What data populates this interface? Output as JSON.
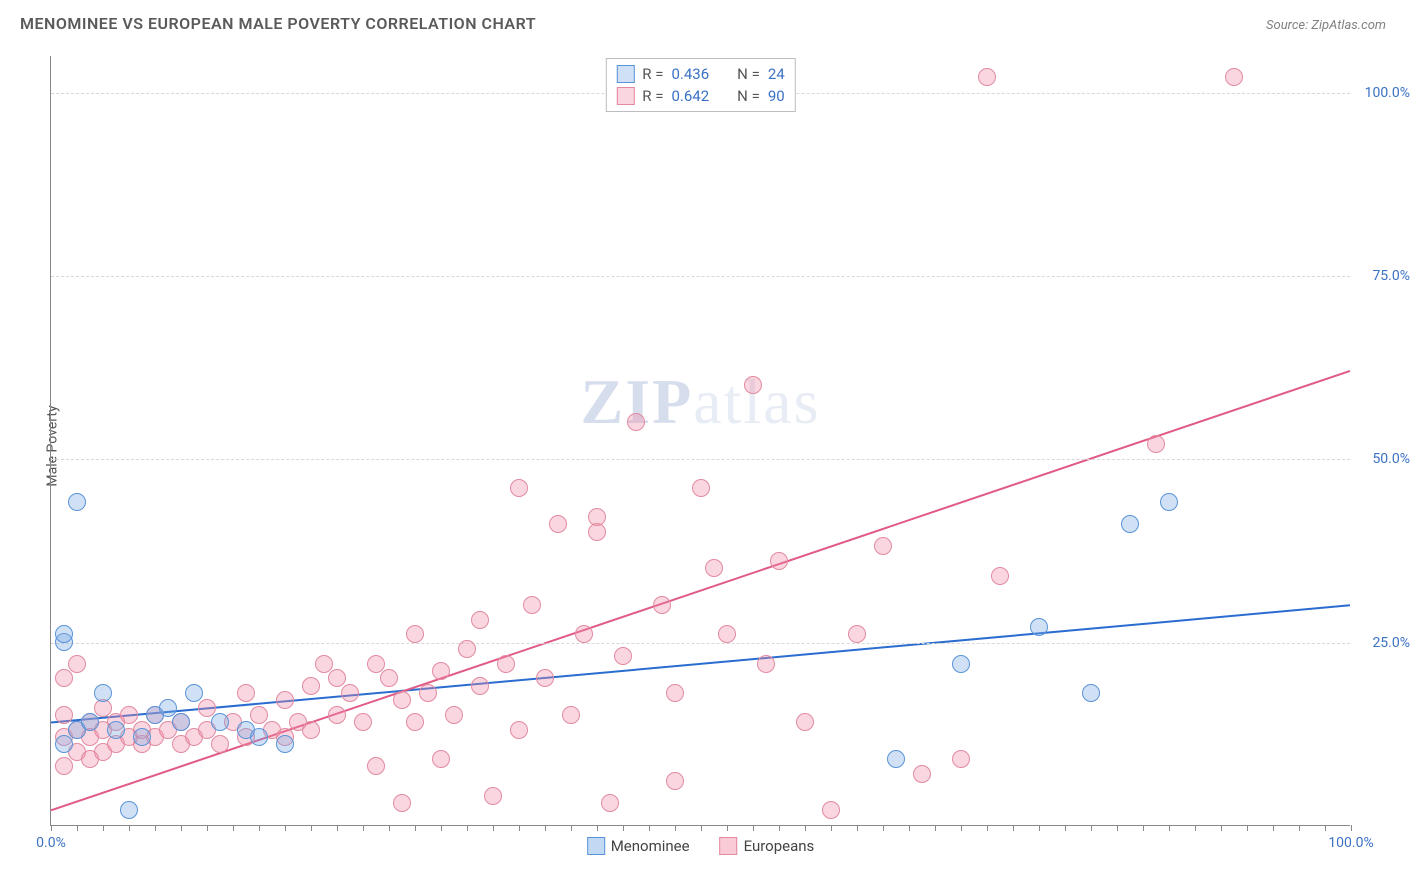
{
  "title": "MENOMINEE VS EUROPEAN MALE POVERTY CORRELATION CHART",
  "source": "Source: ZipAtlas.com",
  "ylabel": "Male Poverty",
  "watermark": "ZIPatlas",
  "chart": {
    "type": "scatter",
    "xlim": [
      0,
      100
    ],
    "ylim": [
      0,
      105
    ],
    "yticks": [
      {
        "v": 25,
        "label": "25.0%"
      },
      {
        "v": 50,
        "label": "50.0%"
      },
      {
        "v": 75,
        "label": "75.0%"
      },
      {
        "v": 100,
        "label": "100.0%"
      }
    ],
    "xticks_minor_step": 2,
    "xtick_labels": [
      {
        "v": 0,
        "label": "0.0%"
      },
      {
        "v": 100,
        "label": "100.0%"
      }
    ],
    "background_color": "#ffffff",
    "grid_color": "#d8d8d8",
    "axis_color": "#888888",
    "tick_label_color": "#3a72c4",
    "series": [
      {
        "name": "Menominee",
        "color_fill": "rgba(120,170,230,0.35)",
        "color_stroke": "#5a94d8",
        "marker_radius": 9,
        "trend": {
          "y0": 14,
          "y100": 30,
          "color": "#2a6ccf",
          "width": 2
        },
        "R": "0.436",
        "N": "24",
        "points": [
          [
            2,
            44
          ],
          [
            1,
            25
          ],
          [
            1,
            26
          ],
          [
            1,
            11
          ],
          [
            2,
            13
          ],
          [
            3,
            14
          ],
          [
            4,
            18
          ],
          [
            5,
            13
          ],
          [
            6,
            2
          ],
          [
            8,
            15
          ],
          [
            10,
            14
          ],
          [
            11,
            18
          ],
          [
            13,
            14
          ],
          [
            15,
            13
          ],
          [
            65,
            9
          ],
          [
            70,
            22
          ],
          [
            76,
            27
          ],
          [
            80,
            18
          ],
          [
            83,
            41
          ],
          [
            86,
            44
          ],
          [
            16,
            12
          ],
          [
            18,
            11
          ],
          [
            7,
            12
          ],
          [
            9,
            16
          ]
        ]
      },
      {
        "name": "Europeans",
        "color_fill": "rgba(240,140,165,0.35)",
        "color_stroke": "#e28aa0",
        "marker_radius": 9,
        "trend": {
          "y0": 2,
          "y100": 62,
          "color": "#e05a85",
          "width": 2
        },
        "R": "0.642",
        "N": "90",
        "points": [
          [
            1,
            8
          ],
          [
            1,
            12
          ],
          [
            1,
            15
          ],
          [
            1,
            20
          ],
          [
            2,
            10
          ],
          [
            2,
            13
          ],
          [
            2,
            22
          ],
          [
            3,
            9
          ],
          [
            3,
            12
          ],
          [
            3,
            14
          ],
          [
            4,
            10
          ],
          [
            4,
            13
          ],
          [
            4,
            16
          ],
          [
            5,
            11
          ],
          [
            5,
            14
          ],
          [
            6,
            12
          ],
          [
            6,
            15
          ],
          [
            7,
            11
          ],
          [
            7,
            13
          ],
          [
            8,
            12
          ],
          [
            8,
            15
          ],
          [
            9,
            13
          ],
          [
            10,
            11
          ],
          [
            10,
            14
          ],
          [
            11,
            12
          ],
          [
            12,
            13
          ],
          [
            12,
            16
          ],
          [
            13,
            11
          ],
          [
            14,
            14
          ],
          [
            15,
            12
          ],
          [
            15,
            18
          ],
          [
            16,
            15
          ],
          [
            17,
            13
          ],
          [
            18,
            12
          ],
          [
            18,
            17
          ],
          [
            19,
            14
          ],
          [
            20,
            13
          ],
          [
            20,
            19
          ],
          [
            21,
            22
          ],
          [
            22,
            15
          ],
          [
            22,
            20
          ],
          [
            23,
            18
          ],
          [
            24,
            14
          ],
          [
            25,
            22
          ],
          [
            25,
            8
          ],
          [
            26,
            20
          ],
          [
            27,
            17
          ],
          [
            27,
            3
          ],
          [
            28,
            14
          ],
          [
            28,
            26
          ],
          [
            29,
            18
          ],
          [
            30,
            21
          ],
          [
            30,
            9
          ],
          [
            31,
            15
          ],
          [
            32,
            24
          ],
          [
            33,
            19
          ],
          [
            33,
            28
          ],
          [
            34,
            4
          ],
          [
            35,
            22
          ],
          [
            36,
            46
          ],
          [
            36,
            13
          ],
          [
            37,
            30
          ],
          [
            38,
            20
          ],
          [
            39,
            41
          ],
          [
            40,
            15
          ],
          [
            41,
            26
          ],
          [
            42,
            40
          ],
          [
            42,
            42
          ],
          [
            43,
            3
          ],
          [
            44,
            23
          ],
          [
            45,
            55
          ],
          [
            47,
            30
          ],
          [
            48,
            18
          ],
          [
            50,
            46
          ],
          [
            51,
            35
          ],
          [
            52,
            26
          ],
          [
            54,
            60
          ],
          [
            55,
            22
          ],
          [
            56,
            36
          ],
          [
            58,
            14
          ],
          [
            60,
            2
          ],
          [
            62,
            26
          ],
          [
            64,
            38
          ],
          [
            67,
            7
          ],
          [
            70,
            9
          ],
          [
            72,
            102
          ],
          [
            73,
            34
          ],
          [
            85,
            52
          ],
          [
            91,
            102
          ],
          [
            48,
            6
          ]
        ]
      }
    ]
  },
  "legend_top": {
    "border_color": "#bcbcbc",
    "label_R": "R =",
    "label_N": "N ="
  },
  "legend_bottom": [
    {
      "swatch_fill": "rgba(120,170,230,0.45)",
      "swatch_stroke": "#5a94d8",
      "label": "Menominee"
    },
    {
      "swatch_fill": "rgba(240,140,165,0.45)",
      "swatch_stroke": "#e28aa0",
      "label": "Europeans"
    }
  ]
}
